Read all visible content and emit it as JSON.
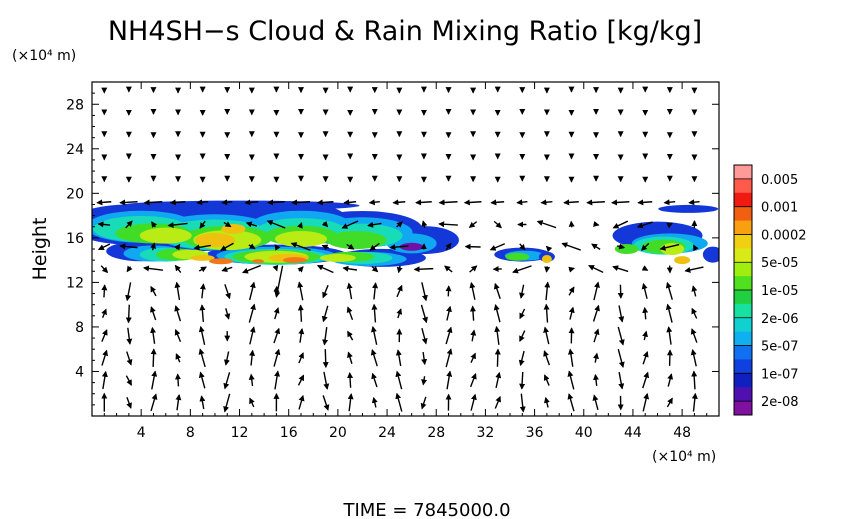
{
  "chart_data": {
    "type": "heatmap",
    "title": "NH4SH−s Cloud & Rain Mixing Ratio [kg/kg]",
    "ylabel": "Height",
    "y_unit": "(×10⁴ m)",
    "x_unit": "(×10⁴ m)",
    "xlim": [
      0,
      51
    ],
    "ylim": [
      0,
      30
    ],
    "x_ticks": [
      4,
      8,
      12,
      16,
      20,
      24,
      28,
      32,
      36,
      40,
      44,
      48
    ],
    "y_ticks": [
      4,
      8,
      12,
      16,
      20,
      24,
      28
    ],
    "time_label": "TIME  =  7845000.0",
    "grid": false,
    "legend_position": "right",
    "colorbar": {
      "labels": [
        "0.005",
        "0.001",
        "0.0002",
        "5e-05",
        "1e-05",
        "2e-06",
        "5e-07",
        "1e-07",
        "2e-08"
      ],
      "colors_top_to_bottom": [
        "#ff9a9a",
        "#ff5a4a",
        "#f01a10",
        "#f06010",
        "#f8a010",
        "#f0d010",
        "#d8ea18",
        "#a0ee10",
        "#50e020",
        "#20d040",
        "#18e0a0",
        "#10d0d0",
        "#10b0f0",
        "#1070f0",
        "#1040e0",
        "#1020c0",
        "#5010b0",
        "#8010a0"
      ]
    },
    "cloud_patches": [
      {
        "x": [
          0,
          29
        ],
        "y": [
          13,
          19.5
        ],
        "max_ratio": 0.0002
      },
      {
        "x": [
          33,
          37
        ],
        "y": [
          13.5,
          15.5
        ],
        "max_ratio": 0.0002
      },
      {
        "x": [
          42,
          51
        ],
        "y": [
          13,
          19
        ],
        "max_ratio": 0.0002
      }
    ]
  }
}
